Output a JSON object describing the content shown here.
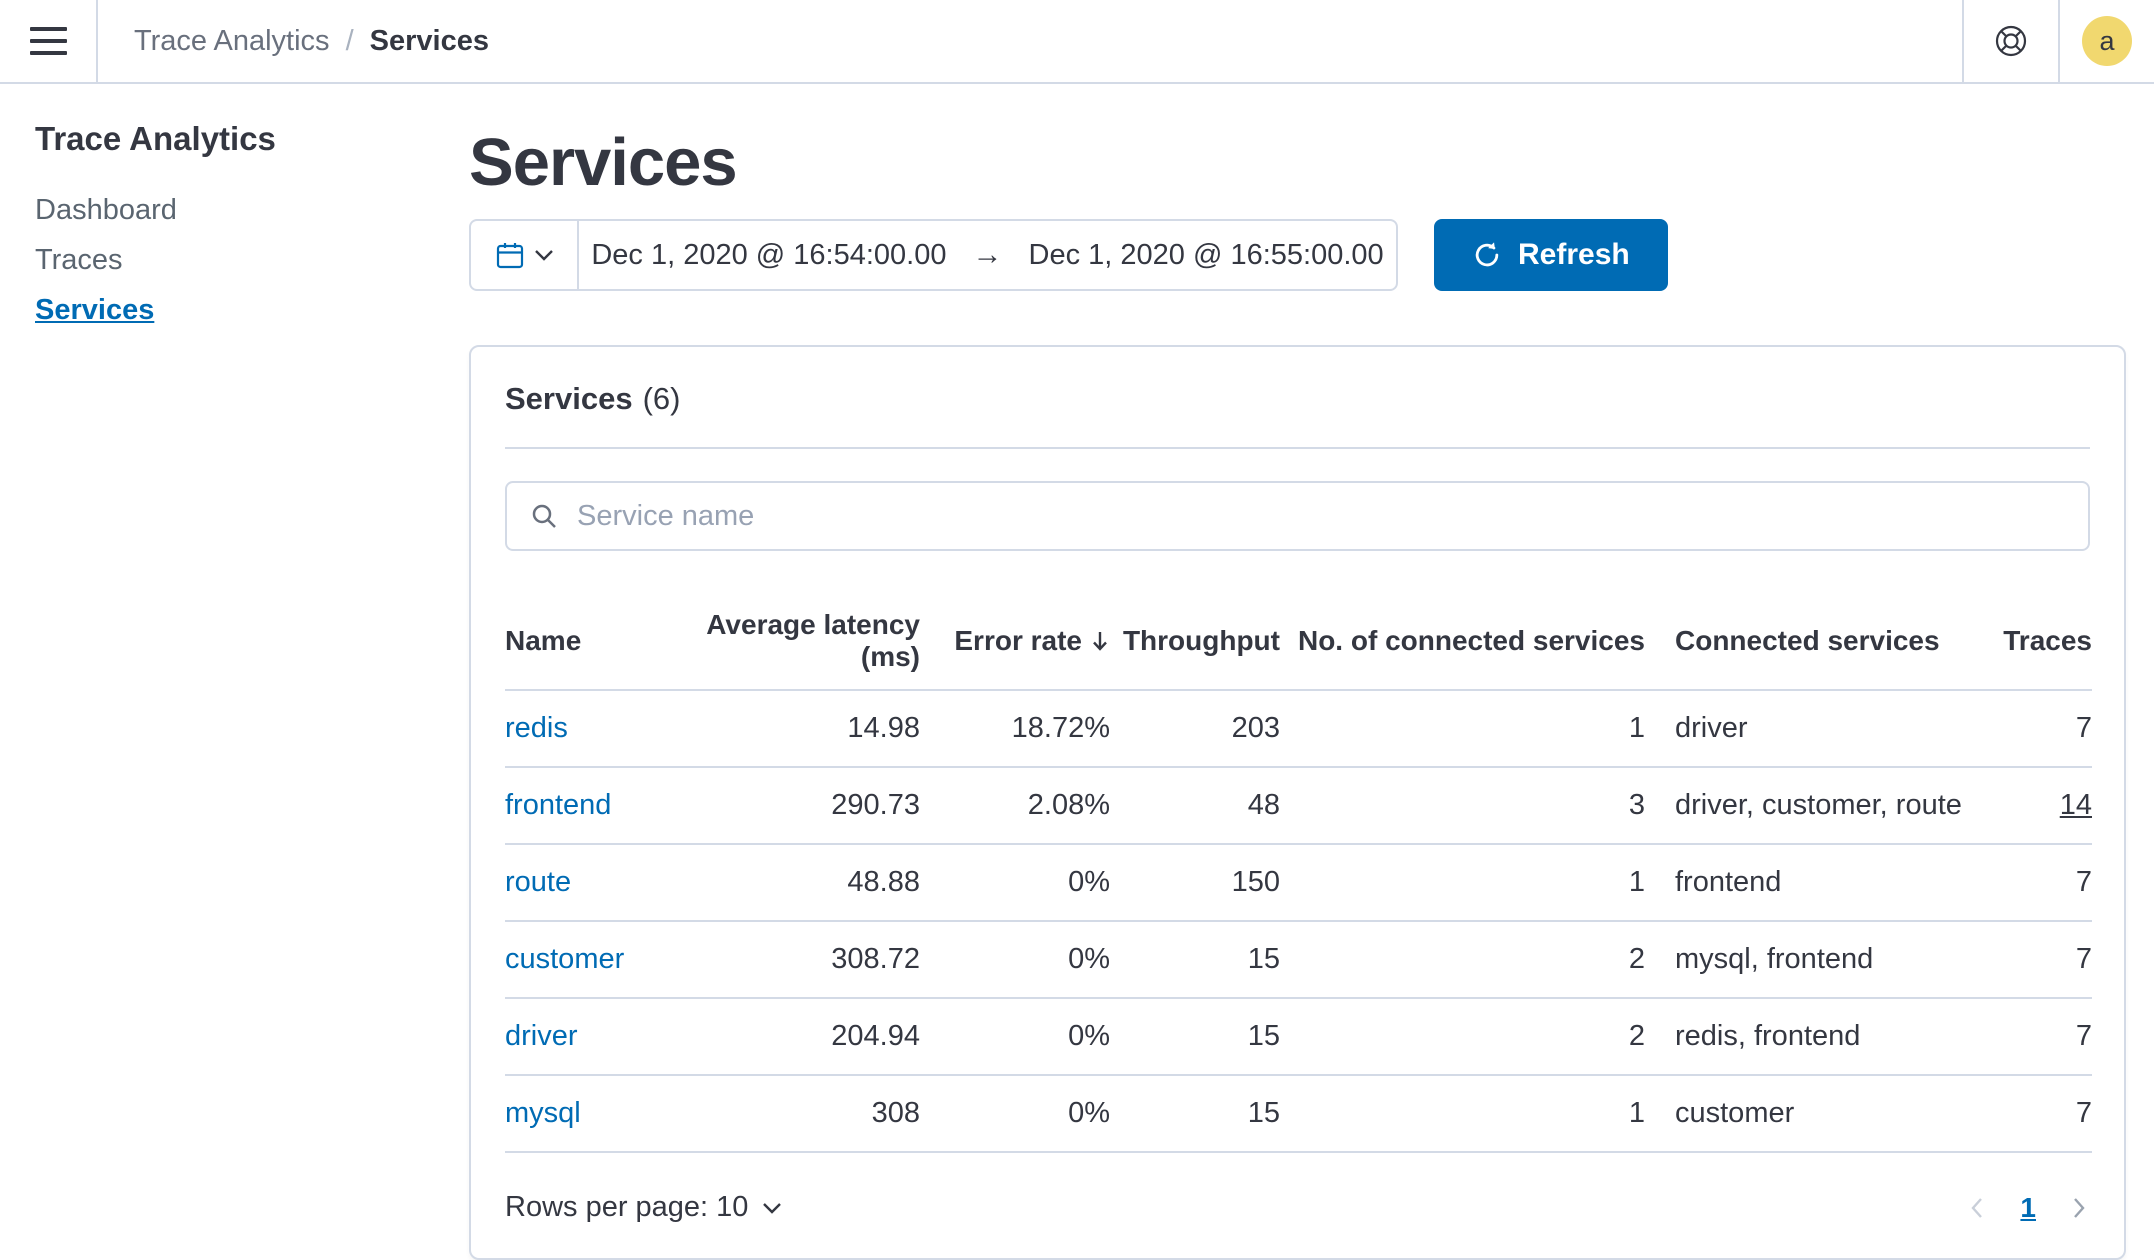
{
  "topbar": {
    "breadcrumbs": {
      "parent": "Trace Analytics",
      "separator": "/",
      "current": "Services"
    },
    "avatar_initial": "a"
  },
  "sidebar": {
    "title": "Trace Analytics",
    "items": [
      {
        "label": "Dashboard",
        "active": false
      },
      {
        "label": "Traces",
        "active": false
      },
      {
        "label": "Services",
        "active": true
      }
    ]
  },
  "main": {
    "title": "Services",
    "datepicker": {
      "start": "Dec 1, 2020 @ 16:54:00.00",
      "arrow": "→",
      "end": "Dec 1, 2020 @ 16:55:00.00"
    },
    "refresh_label": "Refresh"
  },
  "panel": {
    "title": "Services",
    "count": "(6)",
    "search_placeholder": "Service name",
    "table": {
      "columns": [
        "Name",
        "Average latency (ms)",
        "Error rate",
        "Throughput",
        "No. of connected services",
        "Connected services",
        "Traces"
      ],
      "sorted_column": "Error rate",
      "sort_direction": "desc",
      "rows": [
        {
          "name": "redis",
          "latency": "14.98",
          "error_rate": "18.72%",
          "throughput": "203",
          "connected_count": "1",
          "connected_services": "driver",
          "traces": "7",
          "traces_underline": false
        },
        {
          "name": "frontend",
          "latency": "290.73",
          "error_rate": "2.08%",
          "throughput": "48",
          "connected_count": "3",
          "connected_services": "driver, customer, route",
          "traces": "14",
          "traces_underline": true
        },
        {
          "name": "route",
          "latency": "48.88",
          "error_rate": "0%",
          "throughput": "150",
          "connected_count": "1",
          "connected_services": "frontend",
          "traces": "7",
          "traces_underline": false
        },
        {
          "name": "customer",
          "latency": "308.72",
          "error_rate": "0%",
          "throughput": "15",
          "connected_count": "2",
          "connected_services": "mysql, frontend",
          "traces": "7",
          "traces_underline": false
        },
        {
          "name": "driver",
          "latency": "204.94",
          "error_rate": "0%",
          "throughput": "15",
          "connected_count": "2",
          "connected_services": "redis, frontend",
          "traces": "7",
          "traces_underline": false
        },
        {
          "name": "mysql",
          "latency": "308",
          "error_rate": "0%",
          "throughput": "15",
          "connected_count": "1",
          "connected_services": "customer",
          "traces": "7",
          "traces_underline": false
        }
      ]
    },
    "footer": {
      "rows_per_page": "Rows per page: 10",
      "page": "1"
    }
  },
  "colors": {
    "primary": "#006BB4",
    "text": "#343741",
    "muted": "#69707D",
    "border": "#D3DAE6",
    "avatar_bg": "#F1D86F"
  }
}
